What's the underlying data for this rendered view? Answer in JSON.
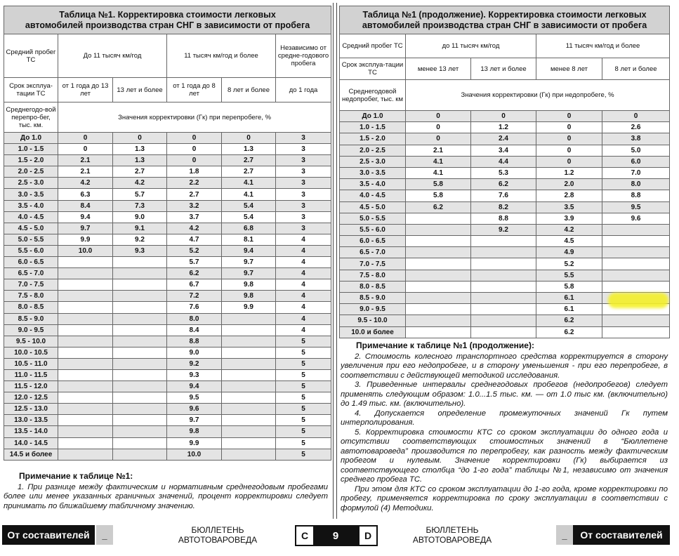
{
  "left_table": {
    "title": [
      "Таблица №1. Корректировка стоимости легковых",
      "автомобилей производства стран СНГ в зависимости от пробега"
    ],
    "mileage_label": "Средний пробег ТС",
    "mileage_groups": [
      "До 11 тысяч км/год",
      "11 тысяч км/год и более"
    ],
    "independent": "Независимо от средне-годового пробега",
    "age_label": "Срок эксплуа-тации ТС",
    "ages": [
      "от 1 года до 13 лет",
      "13 лет и более",
      "от 1 года до 8 лет",
      "8 лет и более",
      "до 1 года"
    ],
    "range_label": "Среднегодо-вой перепро-бег, тыс. км.",
    "values_caption": "Значения корректировки (Гк) при перепробеге, %",
    "rows": [
      {
        "range": "До 1.0",
        "cells": [
          "0",
          "0",
          "0",
          "0",
          "3"
        ]
      },
      {
        "range": "1.0 - 1.5",
        "cells": [
          "0",
          "1.3",
          "0",
          "1.3",
          "3"
        ]
      },
      {
        "range": "1.5 - 2.0",
        "cells": [
          "2.1",
          "1.3",
          "0",
          "2.7",
          "3"
        ]
      },
      {
        "range": "2.0 - 2.5",
        "cells": [
          "2.1",
          "2.7",
          "1.8",
          "2.7",
          "3"
        ]
      },
      {
        "range": "2.5 - 3.0",
        "cells": [
          "4.2",
          "4.2",
          "2.2",
          "4.1",
          "3"
        ]
      },
      {
        "range": "3.0 - 3.5",
        "cells": [
          "6.3",
          "5.7",
          "2.7",
          "4.1",
          "3"
        ]
      },
      {
        "range": "3.5 - 4.0",
        "cells": [
          "8.4",
          "7.3",
          "3.2",
          "5.4",
          "3"
        ]
      },
      {
        "range": "4.0 - 4.5",
        "cells": [
          "9.4",
          "9.0",
          "3.7",
          "5.4",
          "3"
        ]
      },
      {
        "range": "4.5 - 5.0",
        "cells": [
          "9.7",
          "9.1",
          "4.2",
          "6.8",
          "3"
        ]
      },
      {
        "range": "5.0 - 5.5",
        "cells": [
          "9.9",
          "9.2",
          "4.7",
          "8.1",
          "4"
        ]
      },
      {
        "range": "5.5 - 6.0",
        "cells": [
          "10.0",
          "9.3",
          "5.2",
          "9.4",
          "4"
        ]
      },
      {
        "range": "6.0 - 6.5",
        "cells": [
          null,
          null,
          "5.7",
          "9.7",
          "4"
        ]
      },
      {
        "range": "6.5 - 7.0",
        "cells": [
          null,
          null,
          "6.2",
          "9.7",
          "4"
        ]
      },
      {
        "range": "7.0 - 7.5",
        "cells": [
          null,
          null,
          "6.7",
          "9.8",
          "4"
        ]
      },
      {
        "range": "7.5 - 8.0",
        "cells": [
          null,
          null,
          "7.2",
          "9.8",
          "4"
        ]
      },
      {
        "range": "8.0 - 8.5",
        "cells": [
          null,
          null,
          "7.6",
          "9.9",
          "4"
        ]
      },
      {
        "range": "8.5 - 9.0",
        "cells": [
          null,
          null,
          "8.0",
          null,
          "4"
        ]
      },
      {
        "range": "9.0 - 9.5",
        "cells": [
          null,
          null,
          "8.4",
          null,
          "4"
        ]
      },
      {
        "range": "9.5 - 10.0",
        "cells": [
          null,
          null,
          "8.8",
          null,
          "5"
        ]
      },
      {
        "range": "10.0 - 10.5",
        "cells": [
          null,
          null,
          "9.0",
          null,
          "5"
        ]
      },
      {
        "range": "10.5 - 11.0",
        "cells": [
          null,
          null,
          "9.2",
          null,
          "5"
        ]
      },
      {
        "range": "11.0 - 11.5",
        "cells": [
          null,
          null,
          "9.3",
          null,
          "5"
        ]
      },
      {
        "range": "11.5 - 12.0",
        "cells": [
          null,
          null,
          "9.4",
          null,
          "5"
        ]
      },
      {
        "range": "12.0 - 12.5",
        "cells": [
          null,
          null,
          "9.5",
          null,
          "5"
        ]
      },
      {
        "range": "12.5 - 13.0",
        "cells": [
          null,
          null,
          "9.6",
          null,
          "5"
        ]
      },
      {
        "range": "13.0 - 13.5",
        "cells": [
          null,
          null,
          "9.7",
          null,
          "5"
        ]
      },
      {
        "range": "13.5 - 14.0",
        "cells": [
          null,
          null,
          "9.8",
          null,
          "5"
        ]
      },
      {
        "range": "14.0 - 14.5",
        "cells": [
          null,
          null,
          "9.9",
          null,
          "5"
        ]
      },
      {
        "range": "14.5 и более",
        "cells": [
          null,
          null,
          "10.0",
          null,
          "5"
        ]
      }
    ]
  },
  "right_table": {
    "title": [
      "Таблица №1 (продолжение). Корректировка стоимости легковых",
      "автомобилей производства стран СНГ в зависимости от пробега"
    ],
    "mileage_label": "Средний пробег ТС",
    "mileage_groups": [
      "до 11 тысяч км/год",
      "11 тысяч км/год и более"
    ],
    "age_label": "Срок эксплуа-тации ТС",
    "ages": [
      "менее 13 лет",
      "13 лет и более",
      "менее 8 лет",
      "8 лет и более"
    ],
    "range_label": "Среднегодовой недопробег, тыс. км",
    "values_caption": "Значения корректировки (Гк) при недопробеге, %",
    "rows": [
      {
        "range": "До 1.0",
        "cells": [
          "0",
          "0",
          "0",
          "0"
        ]
      },
      {
        "range": "1.0 - 1.5",
        "cells": [
          "0",
          "1.2",
          "0",
          "2.6"
        ]
      },
      {
        "range": "1.5 - 2.0",
        "cells": [
          "0",
          "2.4",
          "0",
          "3.8"
        ]
      },
      {
        "range": "2.0 - 2.5",
        "cells": [
          "2.1",
          "3.4",
          "0",
          "5.0"
        ]
      },
      {
        "range": "2.5 - 3.0",
        "cells": [
          "4.1",
          "4.4",
          "0",
          "6.0"
        ]
      },
      {
        "range": "3.0 - 3.5",
        "cells": [
          "4.1",
          "5.3",
          "1.2",
          "7.0"
        ]
      },
      {
        "range": "3.5 - 4.0",
        "cells": [
          "5.8",
          "6.2",
          "2.0",
          "8.0"
        ]
      },
      {
        "range": "4.0 - 4.5",
        "cells": [
          "5.8",
          "7.6",
          "2.8",
          "8.8"
        ]
      },
      {
        "range": "4.5 - 5.0",
        "cells": [
          "6.2",
          "8.2",
          "3.5",
          "9.5"
        ]
      },
      {
        "range": "5.0 - 5.5",
        "cells": [
          null,
          "8.8",
          "3.9",
          "9.6"
        ]
      },
      {
        "range": "5.5 - 6.0",
        "cells": [
          null,
          "9.2",
          "4.2",
          null
        ]
      },
      {
        "range": "6.0 - 6.5",
        "cells": [
          null,
          null,
          "4.5",
          null
        ]
      },
      {
        "range": "6.5 - 7.0",
        "cells": [
          null,
          null,
          "4.9",
          null
        ]
      },
      {
        "range": "7.0 - 7.5",
        "cells": [
          null,
          null,
          "5.2",
          null
        ]
      },
      {
        "range": "7.5 - 8.0",
        "cells": [
          null,
          null,
          "5.5",
          null
        ]
      },
      {
        "range": "8.0 - 8.5",
        "cells": [
          null,
          null,
          "5.8",
          null
        ]
      },
      {
        "range": "8.5 - 9.0",
        "cells": [
          null,
          null,
          "6.1",
          null
        ]
      },
      {
        "range": "9.0 - 9.5",
        "cells": [
          null,
          null,
          "6.1",
          null
        ]
      },
      {
        "range": "9.5 - 10.0",
        "cells": [
          null,
          null,
          "6.2",
          null
        ]
      },
      {
        "range": "10.0 и более",
        "cells": [
          null,
          null,
          "6.2",
          null
        ]
      }
    ]
  },
  "left_note": {
    "title": "Примечание к таблице №1:",
    "paragraphs": [
      "1. При разнице между фактическим и нормативным среднегодовым пробегами более или менее указанных граничных значений, процент корректировки следует принимать по ближайшему табличному значению."
    ]
  },
  "right_note": {
    "title": "Примечание к таблице №1 (продолжение):",
    "paragraphs": [
      "2. Стоимость колесного транспортного средства корректируется в сторону увеличения при его недопробеге, и в сторону уменьшения - при его перепробеге, в соответствии с действующей методикой исследования.",
      "3. Приведенные интервалы среднегодовых пробегов (недопробегов) следует применять следующим образом: 1.0...1.5 тыс. км. — от 1.0 тыс км. (включительно) до 1.49 тыс. км. (включительно).",
      "4. Допускается определение промежуточных значений Гк путем интерполирования.",
      "5. Корректировка стоимости КТС со сроком эксплуатации до одного года и отсутствии соответствующих стоимостных значений в “Бюллетене автотовароведа” производится по перепробегу, как разность между фактическим пробегом и нулевым. Значение корректировки (Гк) выбирается из соответствующего столбца “до 1-го года” таблицы №1, независимо от значения среднего пробега ТС.",
      "При этом для КТС со сроком эксплуатации до 1-го года, кроме корректировки по пробегу, применяется корректировка по сроку эксплуатации в соответствии с формулой (4) Методики."
    ]
  },
  "footer": {
    "left_section": "От составителей",
    "left_dash": "_",
    "left_journal": [
      "БЮЛЛЕТЕНЬ",
      "АВТОТОВАРОВЕДА"
    ],
    "page_left": "C",
    "page_number": "9",
    "page_right": "D",
    "right_journal": [
      "БЮЛЛЕТЕНЬ",
      "АВТОТОВАРОВЕДА"
    ],
    "right_dash": "_",
    "right_section": "От составителей"
  }
}
